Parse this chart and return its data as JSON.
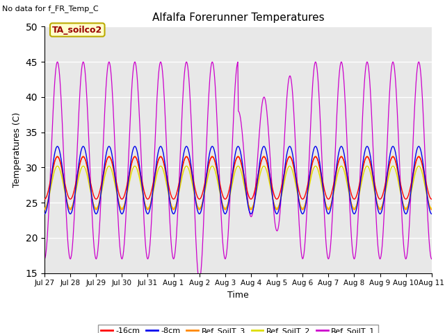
{
  "title": "Alfalfa Forerunner Temperatures",
  "xlabel": "Time",
  "ylabel": "Temperatures (C)",
  "top_left_text": "No data for f_FR_Temp_C",
  "annotation_box": "TA_soilco2",
  "ylim": [
    15,
    50
  ],
  "yticks": [
    15,
    20,
    25,
    30,
    35,
    40,
    45,
    50
  ],
  "line_colors": {
    "-16cm": "#ff0000",
    "-8cm": "#0000ee",
    "Ref_SoilT_3": "#ff8800",
    "Ref_SoilT_2": "#dddd00",
    "Ref_SoilT_1": "#cc00cc"
  },
  "x_tick_labels": [
    "Jul 27",
    "Jul 28",
    "Jul 29",
    "Jul 30",
    "Jul 31",
    "Aug 1",
    "Aug 2",
    "Aug 3",
    "Aug 4",
    "Aug 5",
    "Aug 6",
    "Aug 7",
    "Aug 8",
    "Aug 9",
    "Aug 10",
    "Aug 11"
  ],
  "num_days": 16
}
